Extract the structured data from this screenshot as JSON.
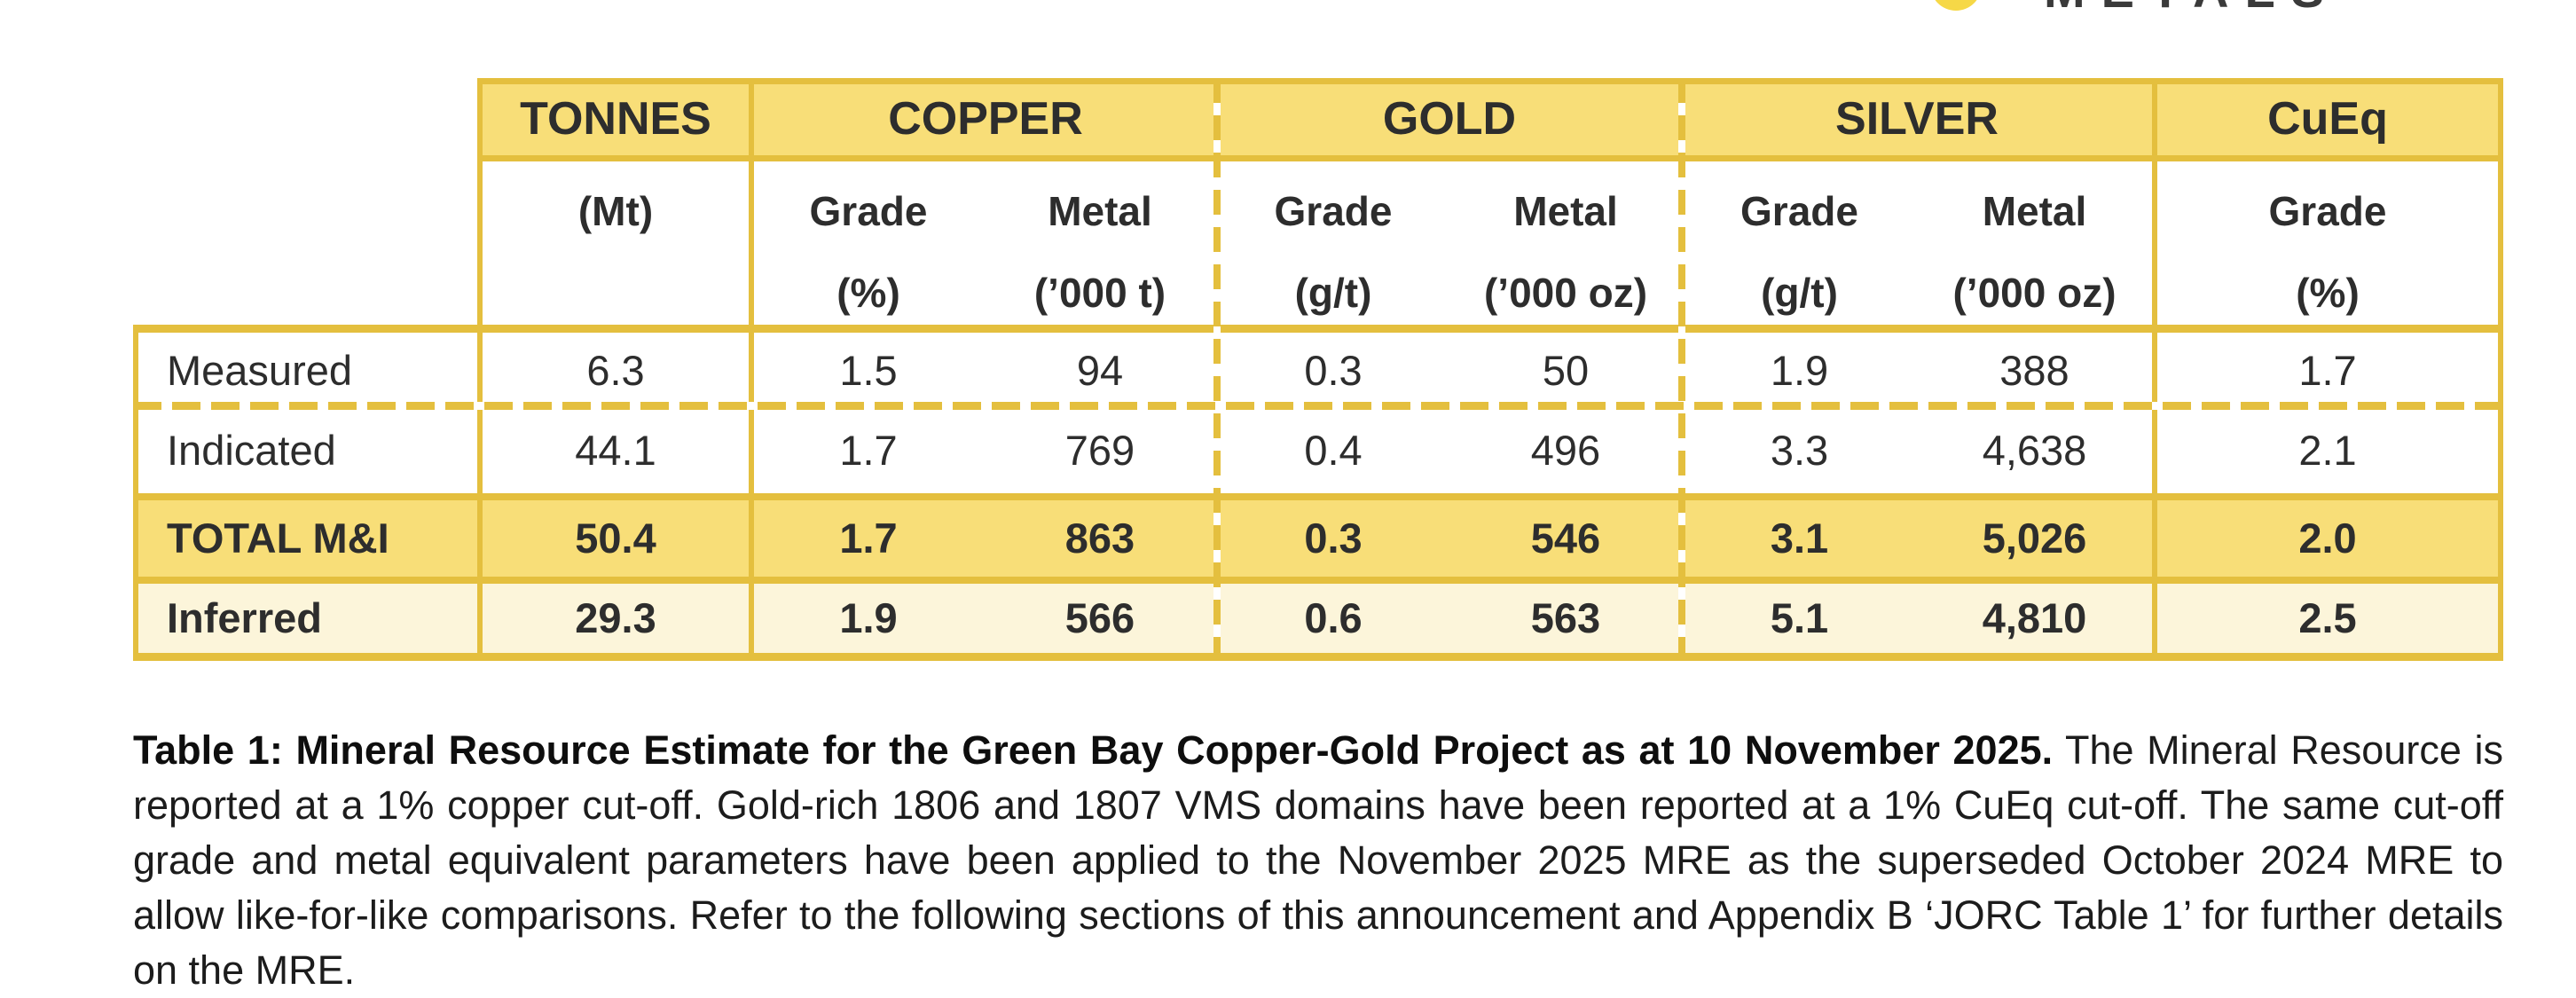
{
  "logo": {
    "brand_text": "METALS",
    "mark_color": "#F6D847"
  },
  "colors": {
    "header_yellow": "#F8DE78",
    "total_row_yellow": "#F8DE78",
    "inferred_row_cream": "#FCF5DA",
    "border_gold": "#E4BF3E",
    "text_dark": "#2D2D2D"
  },
  "table": {
    "groups": [
      {
        "label": "TONNES"
      },
      {
        "label": "COPPER"
      },
      {
        "label": "GOLD"
      },
      {
        "label": "SILVER"
      },
      {
        "label": "CuEq"
      }
    ],
    "units": [
      {
        "l1": "(Mt)",
        "l2": ""
      },
      {
        "l1": "Grade",
        "l2": "(%)"
      },
      {
        "l1": "Metal",
        "l2": "(’000 t)"
      },
      {
        "l1": "Grade",
        "l2": "(g/t)"
      },
      {
        "l1": "Metal",
        "l2": "(’000 oz)"
      },
      {
        "l1": "Grade",
        "l2": "(g/t)"
      },
      {
        "l1": "Metal",
        "l2": "(’000 oz)"
      },
      {
        "l1": "Grade",
        "l2": "(%)"
      }
    ],
    "rows": [
      {
        "label": "Measured",
        "values": [
          "6.3",
          "1.5",
          "94",
          "0.3",
          "50",
          "1.9",
          "388",
          "1.7"
        ]
      },
      {
        "label": "Indicated",
        "values": [
          "44.1",
          "1.7",
          "769",
          "0.4",
          "496",
          "3.3",
          "4,638",
          "2.1"
        ]
      },
      {
        "label": "TOTAL M&I",
        "values": [
          "50.4",
          "1.7",
          "863",
          "0.3",
          "546",
          "3.1",
          "5,026",
          "2.0"
        ]
      },
      {
        "label": "Inferred",
        "values": [
          "29.3",
          "1.9",
          "566",
          "0.6",
          "563",
          "5.1",
          "4,810",
          "2.5"
        ]
      }
    ]
  },
  "caption": {
    "bold": "Table 1: Mineral Resource Estimate for the Green Bay Copper-Gold Project as at 10 November 2025.",
    "body": "The Mineral Resource is reported at a 1% copper cut-off. Gold-rich 1806 and 1807 VMS domains have been reported at a 1% CuEq cut-off.  The same cut-off grade and metal equivalent parameters have been applied to the November 2025 MRE as the superseded October 2024 MRE to allow like-for-like comparisons.  Refer to the following sections of this announcement and Appendix B ‘JORC Table 1’ for further details on the MRE."
  }
}
